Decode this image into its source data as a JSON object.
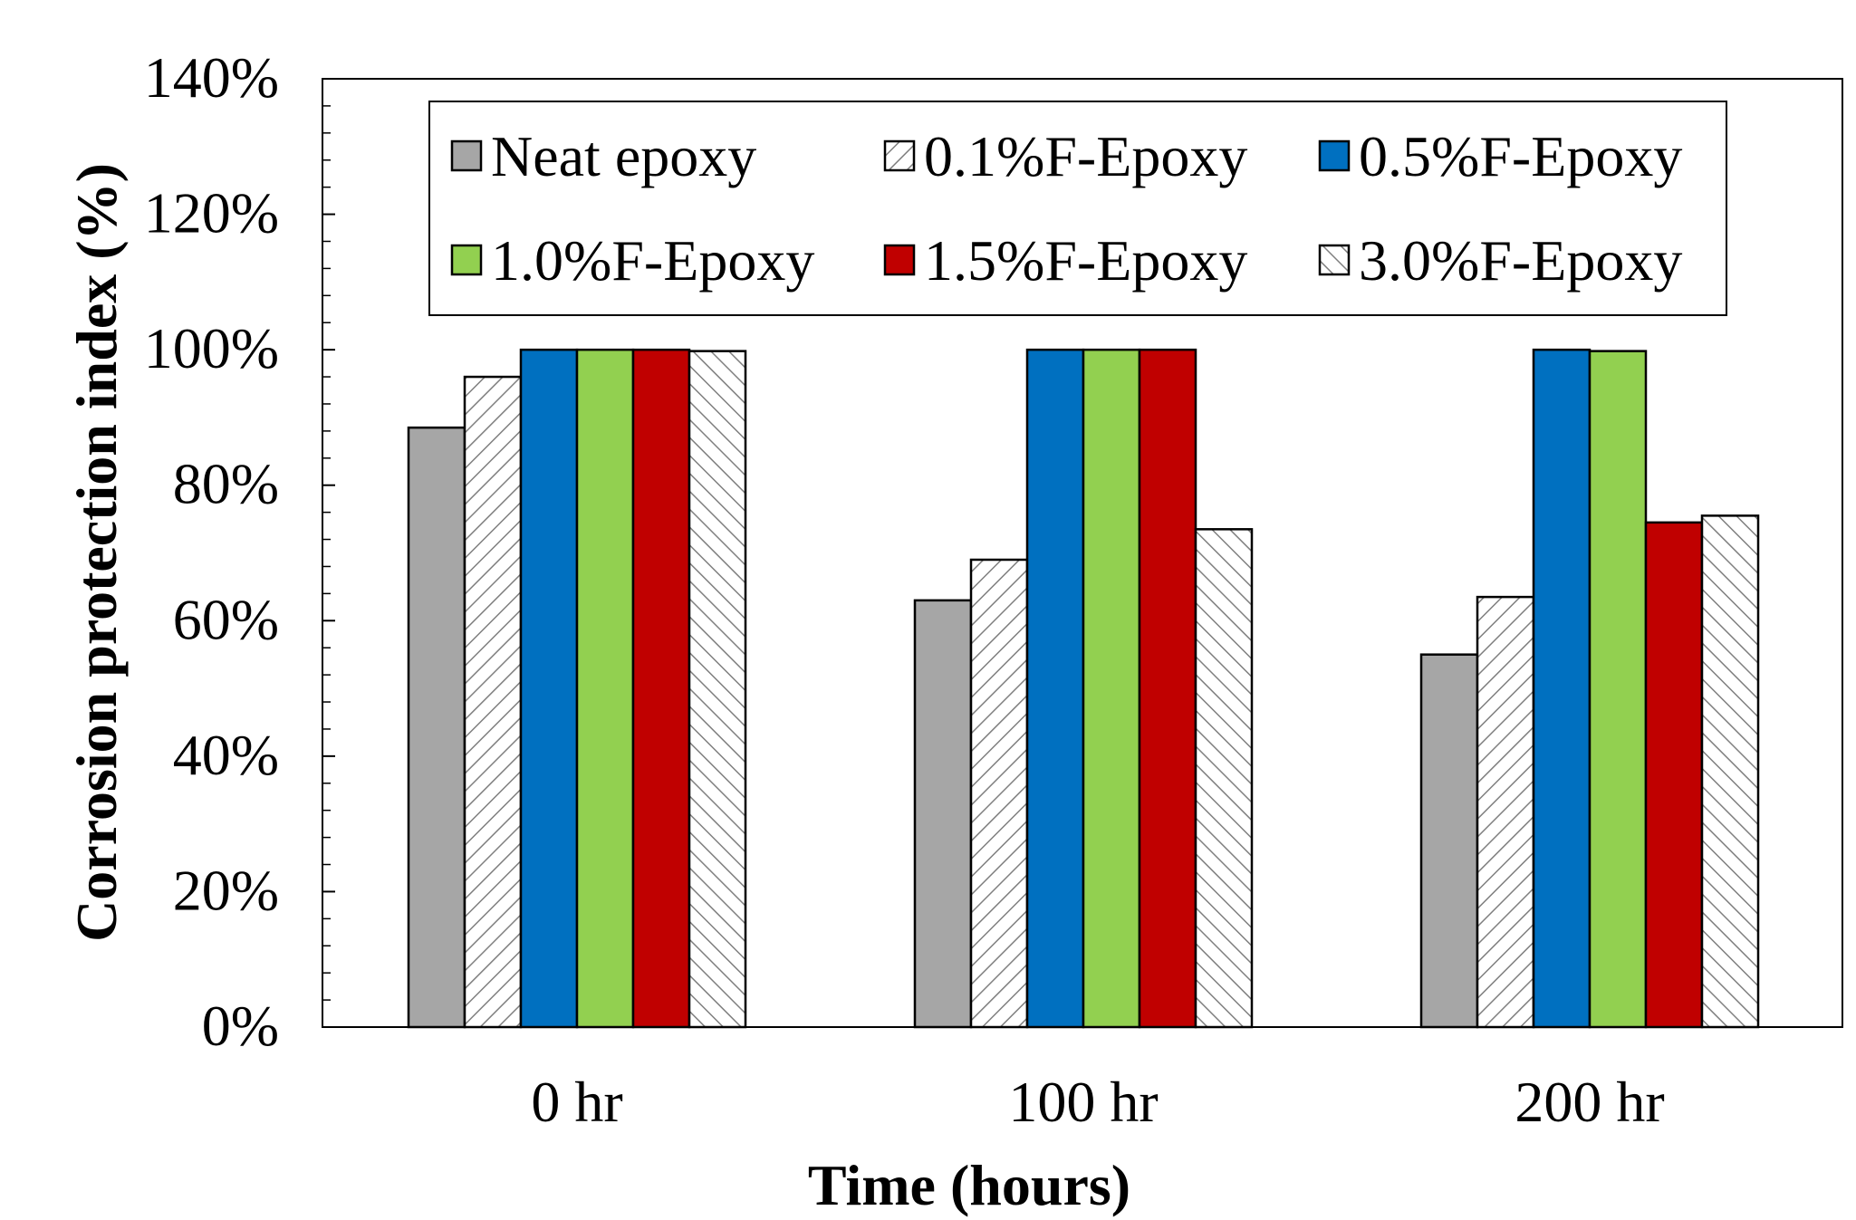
{
  "chart_data": {
    "type": "bar",
    "title": "",
    "xlabel": "Time (hours)",
    "ylabel": "Corrosion protection index (%)",
    "ylim": [
      0,
      140
    ],
    "y_ticks": [
      0,
      20,
      40,
      60,
      80,
      100,
      120,
      140
    ],
    "y_tick_labels": [
      "0%",
      "20%",
      "40%",
      "60%",
      "80%",
      "100%",
      "120%",
      "140%"
    ],
    "categories": [
      "0 hr",
      "100 hr",
      "200 hr"
    ],
    "legend_position": "top",
    "grid": false,
    "series": [
      {
        "name": "Neat epoxy",
        "values": [
          88.5,
          63,
          55
        ],
        "color": "#a6a6a6",
        "fill": "solid"
      },
      {
        "name": "0.1%F-Epoxy",
        "values": [
          96,
          69,
          63.5
        ],
        "color": "#ffffff",
        "fill": "hatch-forward"
      },
      {
        "name": "0.5%F-Epoxy",
        "values": [
          100,
          100,
          100
        ],
        "color": "#0070c0",
        "fill": "solid"
      },
      {
        "name": "1.0%F-Epoxy",
        "values": [
          100,
          100,
          99.8
        ],
        "color": "#92d050",
        "fill": "solid"
      },
      {
        "name": "1.5%F-Epoxy",
        "values": [
          100,
          100,
          74.5
        ],
        "color": "#c00000",
        "fill": "solid"
      },
      {
        "name": "3.0%F-Epoxy",
        "values": [
          99.8,
          73.5,
          75.5
        ],
        "color": "#ffffff",
        "fill": "hatch-back"
      }
    ]
  }
}
